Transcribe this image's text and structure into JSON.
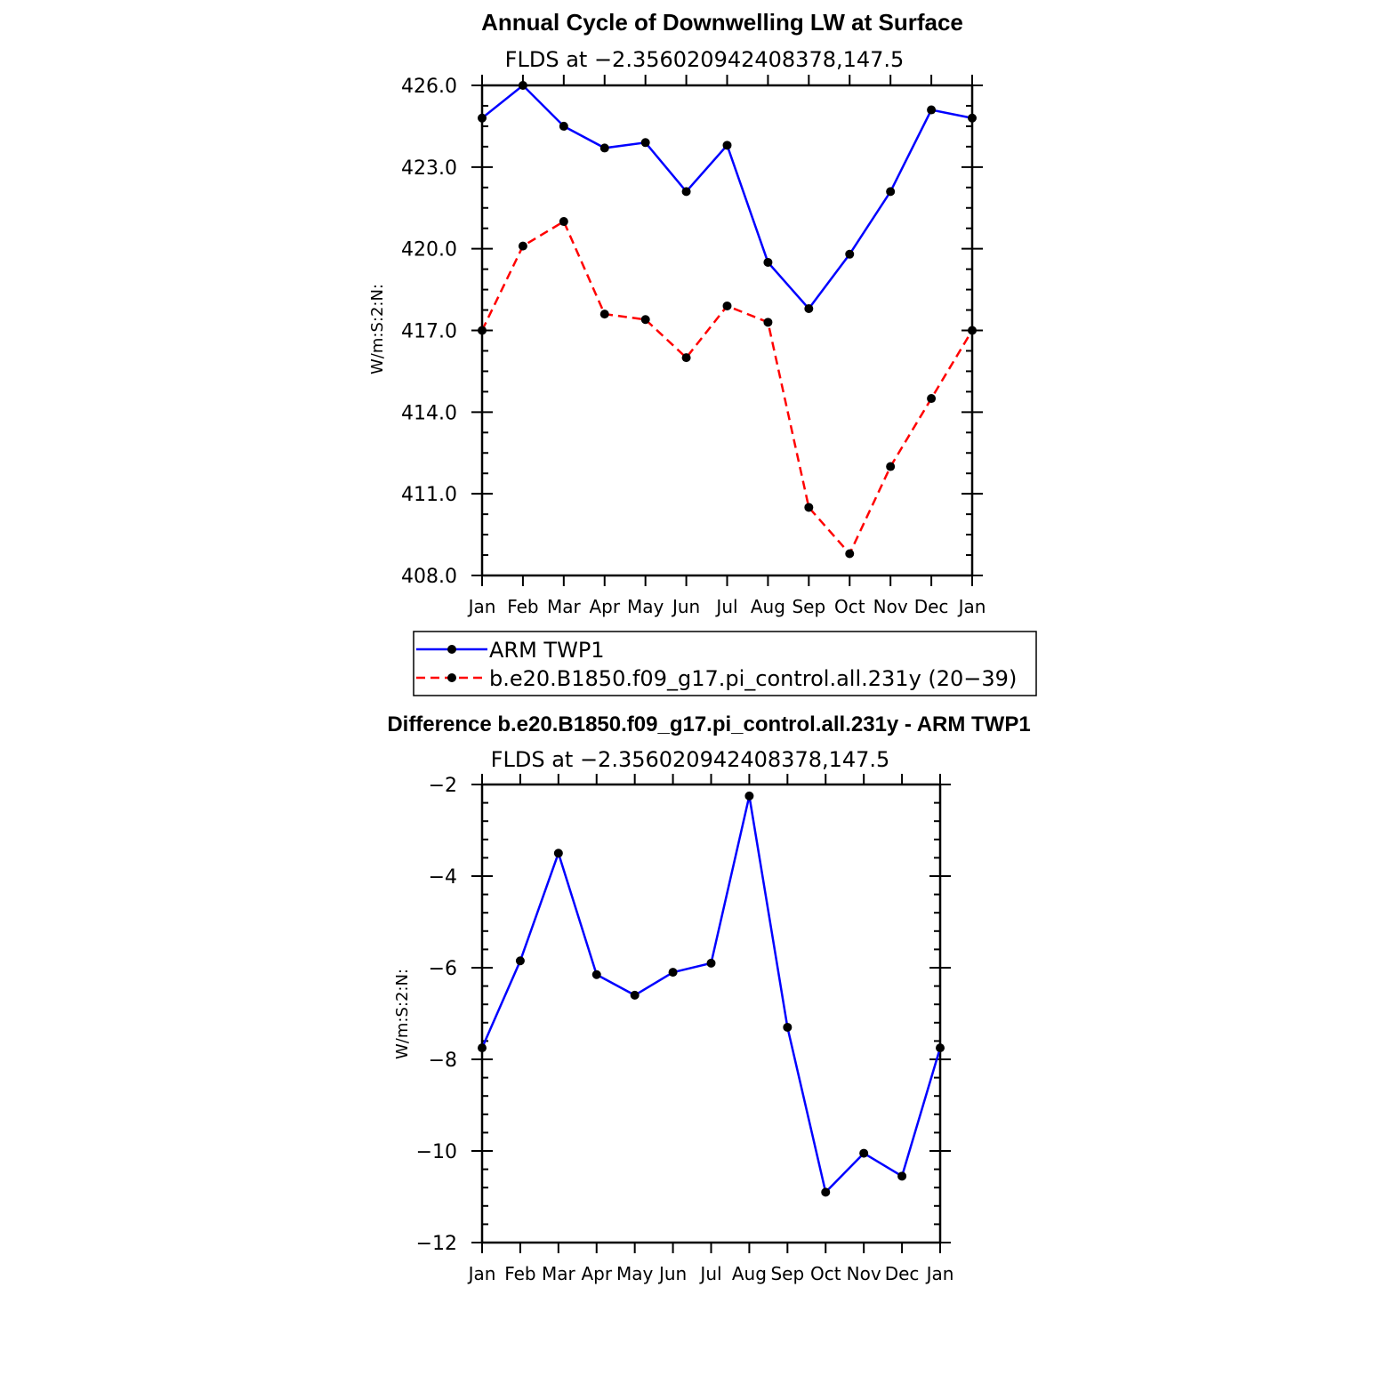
{
  "chart_data": [
    {
      "type": "line",
      "title": "Annual Cycle of Downwelling LW at Surface",
      "subtitle": "FLDS at −2.356020942408378,147.5",
      "ylabel": "W/m:S:2:N:",
      "xlabel": "",
      "categories": [
        "Jan",
        "Feb",
        "Mar",
        "Apr",
        "May",
        "Jun",
        "Jul",
        "Aug",
        "Sep",
        "Oct",
        "Nov",
        "Dec",
        "Jan"
      ],
      "ylim": [
        408.0,
        426.0
      ],
      "yticks": [
        "426.0",
        "423.0",
        "420.0",
        "417.0",
        "414.0",
        "411.0",
        "408.0"
      ],
      "grid": false,
      "legend_position": "bottom",
      "series": [
        {
          "name": "ARM TWP1",
          "color": "#0000ff",
          "dash": "solid",
          "values": [
            424.8,
            426.0,
            424.5,
            423.7,
            423.9,
            422.1,
            423.8,
            419.5,
            417.8,
            419.8,
            422.1,
            425.1,
            424.8
          ]
        },
        {
          "name": "b.e20.B1850.f09_g17.pi_control.all.231y (20−39)",
          "color": "#ff0000",
          "dash": "dashed",
          "values": [
            417.0,
            420.1,
            421.0,
            417.6,
            417.4,
            416.0,
            417.9,
            417.3,
            410.5,
            408.8,
            412.0,
            414.5,
            417.0
          ]
        }
      ]
    },
    {
      "type": "line",
      "title": "Difference b.e20.B1850.f09_g17.pi_control.all.231y - ARM TWP1",
      "subtitle": "FLDS at −2.356020942408378,147.5",
      "ylabel": "W/m:S:2:N:",
      "xlabel": "",
      "categories": [
        "Jan",
        "Feb",
        "Mar",
        "Apr",
        "May",
        "Jun",
        "Jul",
        "Aug",
        "Sep",
        "Oct",
        "Nov",
        "Dec",
        "Jan"
      ],
      "ylim": [
        -12,
        -2
      ],
      "yticks": [
        "−2",
        "−4",
        "−6",
        "−8",
        "−10",
        "−12"
      ],
      "grid": false,
      "series": [
        {
          "color": "#0000ff",
          "dash": "solid",
          "values": [
            -7.75,
            -5.85,
            -3.5,
            -6.15,
            -6.6,
            -6.1,
            -5.9,
            -2.25,
            -7.3,
            -10.9,
            -10.05,
            -10.55,
            -7.75
          ]
        }
      ]
    }
  ]
}
